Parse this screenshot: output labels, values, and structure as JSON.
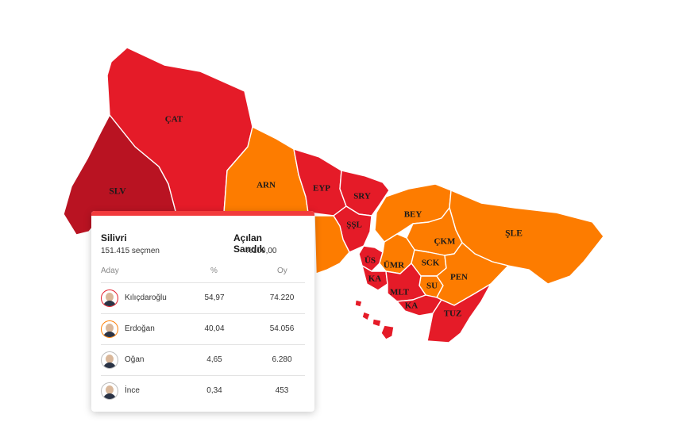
{
  "map": {
    "colors": {
      "red": "#e51b28",
      "dark_red": "#b91322",
      "orange": "#fd7c00",
      "border": "#ffffff"
    },
    "districts": [
      {
        "label": "ÇAT",
        "color": "red"
      },
      {
        "label": "SLV",
        "color": "dark_red"
      },
      {
        "label": "ARN",
        "color": "orange"
      },
      {
        "label": "EYP",
        "color": "red"
      },
      {
        "label": "SRY",
        "color": "red"
      },
      {
        "label": "ŞŞL",
        "color": "red"
      },
      {
        "label": "BEY",
        "color": "orange"
      },
      {
        "label": "ÇKM",
        "color": "orange"
      },
      {
        "label": "ŞLE",
        "color": "orange"
      },
      {
        "label": "ÜS",
        "color": "red"
      },
      {
        "label": "ÜMR",
        "color": "orange"
      },
      {
        "label": "SCK",
        "color": "orange"
      },
      {
        "label": "KA",
        "color": "red"
      },
      {
        "label": "SU",
        "color": "orange"
      },
      {
        "label": "PEN",
        "color": "orange"
      },
      {
        "label": "MLT",
        "color": "red"
      },
      {
        "label": "KA",
        "color": "red"
      },
      {
        "label": "TUZ",
        "color": "red"
      }
    ]
  },
  "popup": {
    "accent": "#f23a3c",
    "district_name": "Silivri",
    "voters": "151.415 seçmen",
    "opened_label": "Açılan Sandık",
    "opened_value": "%100,00",
    "columns": {
      "candidate": "Aday",
      "percent": "%",
      "votes": "Oy"
    },
    "candidates": [
      {
        "name": "Kılıçdaroğlu",
        "percent": "54,97",
        "votes": "74.220",
        "ring_color": "#e51b28"
      },
      {
        "name": "Erdoğan",
        "percent": "40,04",
        "votes": "54.056",
        "ring_color": "#fd7c00"
      },
      {
        "name": "Oğan",
        "percent": "4,65",
        "votes": "6.280",
        "ring_color": "#bbbbbb"
      },
      {
        "name": "İnce",
        "percent": "0,34",
        "votes": "453",
        "ring_color": "#bbbbbb"
      }
    ]
  }
}
